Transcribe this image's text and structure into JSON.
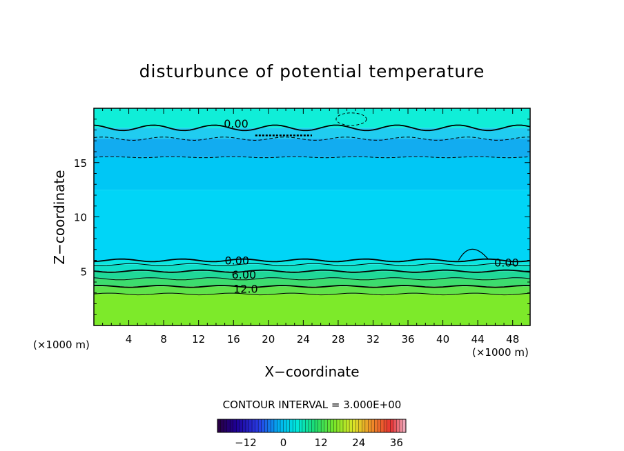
{
  "chart_data": {
    "type": "heatmap",
    "title": "disturbunce of potential temperature",
    "xlabel": "X−coordinate",
    "ylabel": "Z−coordinate",
    "x_unit": "(×1000 m)",
    "z_unit": "(×1000 m)",
    "xlim": [
      0,
      50
    ],
    "ylim": [
      0,
      20
    ],
    "x_ticks": [
      4,
      8,
      12,
      16,
      20,
      24,
      28,
      32,
      36,
      40,
      44,
      48
    ],
    "x_tick_labels": [
      "4",
      "8",
      "12",
      "16",
      "20",
      "24",
      "28",
      "32",
      "36",
      "40",
      "44",
      "48"
    ],
    "y_ticks": [
      5,
      10,
      15
    ],
    "y_tick_labels": [
      "5",
      "10",
      "15"
    ],
    "contour_labels": [
      {
        "text": "0.00",
        "x": 16.3,
        "z": 18.6
      },
      {
        "text": "0.00",
        "x": 16.4,
        "z": 6.0
      },
      {
        "text": "6.00",
        "x": 17.2,
        "z": 4.7
      },
      {
        "text": "12.0",
        "x": 17.4,
        "z": 3.4
      },
      {
        "text": "0.00",
        "x": 47.3,
        "z": 5.8
      }
    ],
    "contour_interval_text": "CONTOUR INTERVAL = 3.000E+00",
    "contour_interval": 3.0,
    "colorbar": {
      "range": [
        -21,
        39
      ],
      "tick_values": [
        -12,
        0,
        12,
        24,
        36
      ],
      "tick_labels": [
        "−12",
        "0",
        "12",
        "24",
        "36"
      ]
    },
    "field_bands": [
      {
        "z_range": [
          0,
          2.9
        ],
        "value": 15,
        "color": "#7dea2a"
      },
      {
        "z_range": [
          2.9,
          3.6
        ],
        "value": 12,
        "color": "#5fe24a"
      },
      {
        "z_range": [
          3.6,
          4.3
        ],
        "value": 9,
        "color": "#3ddc6e"
      },
      {
        "z_range": [
          4.3,
          5.0
        ],
        "value": 6,
        "color": "#20d898"
      },
      {
        "z_range": [
          5.0,
          5.6
        ],
        "value": 3,
        "color": "#10e0c8"
      },
      {
        "z_range": [
          5.6,
          6.0
        ],
        "value": 0,
        "color": "#0ae6e0"
      },
      {
        "z_range": [
          6.0,
          12.5
        ],
        "value": -3,
        "color": "#00d5f7"
      },
      {
        "z_range": [
          12.5,
          15.5
        ],
        "value": -3,
        "color": "#00c7f5"
      },
      {
        "z_range": [
          15.5,
          17.2
        ],
        "value": -6,
        "color": "#12acf0"
      },
      {
        "z_range": [
          17.2,
          18.2
        ],
        "value": -3,
        "color": "#20ccf0"
      },
      {
        "z_range": [
          18.2,
          20.0
        ],
        "value": 0,
        "color": "#10eed8"
      }
    ],
    "colors": {
      "frame": "#000000",
      "contour": "#000000"
    }
  }
}
